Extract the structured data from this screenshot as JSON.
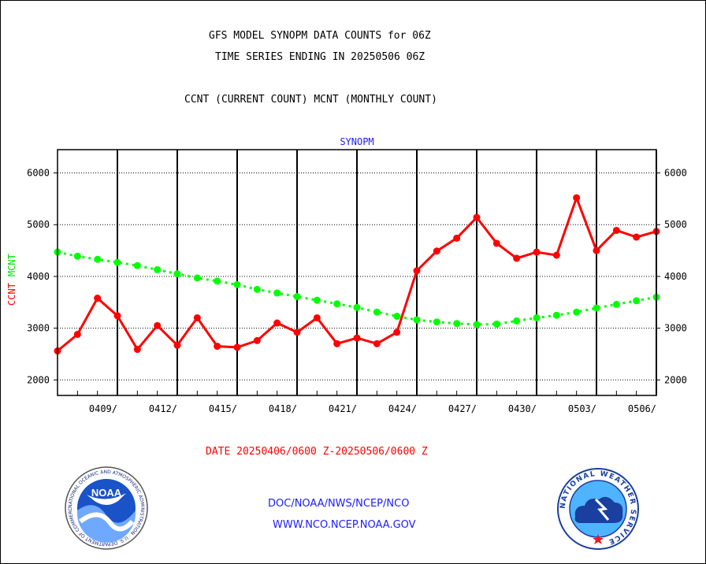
{
  "header": {
    "line1": "GFS MODEL SYNOPM DATA COUNTS for 06Z",
    "line2": "TIME SERIES ENDING IN 20250506 06Z",
    "line3": "CCNT (CURRENT COUNT) MCNT (MONTHLY COUNT)"
  },
  "footer": {
    "date_range": "DATE 20250406/0600 Z-20250506/0600 Z",
    "org": "DOC/NOAA/NWS/NCEP/NCO",
    "url": "WWW.NCO.NCEP.NOAA.GOV"
  },
  "logos": {
    "noaa_text": "NOAA",
    "noaa_ring": "NATIONAL OCEANIC AND ATMOSPHERIC ADMINISTRATION · U.S. DEPARTMENT OF COMMERCE ·",
    "nws_ring": "NATIONAL WEATHER SERVICE"
  },
  "chart_data": {
    "type": "line",
    "title": "SYNOPM",
    "ylabel_ccnt": "CCNT",
    "ylabel_mcnt": "MCNT",
    "x": [
      "0406",
      "0407",
      "0408",
      "0409",
      "0410",
      "0411",
      "0412",
      "0413",
      "0414",
      "0415",
      "0416",
      "0417",
      "0418",
      "0419",
      "0420",
      "0421",
      "0422",
      "0423",
      "0424",
      "0425",
      "0426",
      "0427",
      "0428",
      "0429",
      "0430",
      "0501",
      "0502",
      "0503",
      "0504",
      "0505",
      "0506"
    ],
    "xticks": [
      "0409/",
      "0412/",
      "0415/",
      "0418/",
      "0421/",
      "0424/",
      "0427/",
      "0430/",
      "0503/",
      "0506/"
    ],
    "yticks": [
      2000,
      3000,
      4000,
      5000,
      6000
    ],
    "ylim": [
      1700,
      6450
    ],
    "grid": true,
    "series": [
      {
        "name": "CCNT",
        "color": "#ff0000",
        "values": [
          2560,
          2880,
          3580,
          3240,
          2590,
          3050,
          2670,
          3200,
          2650,
          2630,
          2760,
          3100,
          2920,
          3200,
          2700,
          2810,
          2700,
          2920,
          4110,
          4490,
          4740,
          5140,
          4640,
          4350,
          4470,
          4410,
          5520,
          4500,
          4890,
          4760,
          4870
        ]
      },
      {
        "name": "MCNT",
        "color": "#00ff00",
        "values": [
          4470,
          4390,
          4330,
          4270,
          4210,
          4130,
          4050,
          3970,
          3910,
          3840,
          3750,
          3680,
          3610,
          3540,
          3470,
          3400,
          3310,
          3230,
          3160,
          3120,
          3090,
          3070,
          3080,
          3140,
          3200,
          3250,
          3310,
          3390,
          3460,
          3530,
          3600
        ]
      }
    ]
  }
}
